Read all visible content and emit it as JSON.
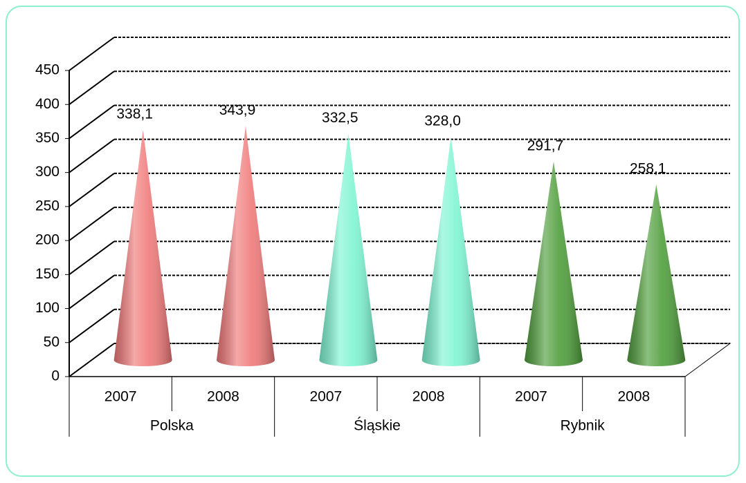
{
  "chart_data": {
    "type": "cone",
    "categories": [
      "2007",
      "2008",
      "2007",
      "2008",
      "2007",
      "2008"
    ],
    "groups": [
      "Polska",
      "Śląskie",
      "Rybnik"
    ],
    "values": [
      338.1,
      343.9,
      332.5,
      328.0,
      291.7,
      258.1
    ],
    "value_labels": [
      "338,1",
      "343,9",
      "332,5",
      "328,0",
      "291,7",
      "258,1"
    ],
    "colors": [
      "#f07a7a",
      "#f07a7a",
      "#7ff5d2",
      "#7ff5d2",
      "#4f9e3c",
      "#4f9e3c"
    ],
    "ylim": [
      0,
      450
    ],
    "yticks": [
      0,
      50,
      100,
      150,
      200,
      250,
      300,
      350,
      400,
      450
    ],
    "grid": true
  }
}
